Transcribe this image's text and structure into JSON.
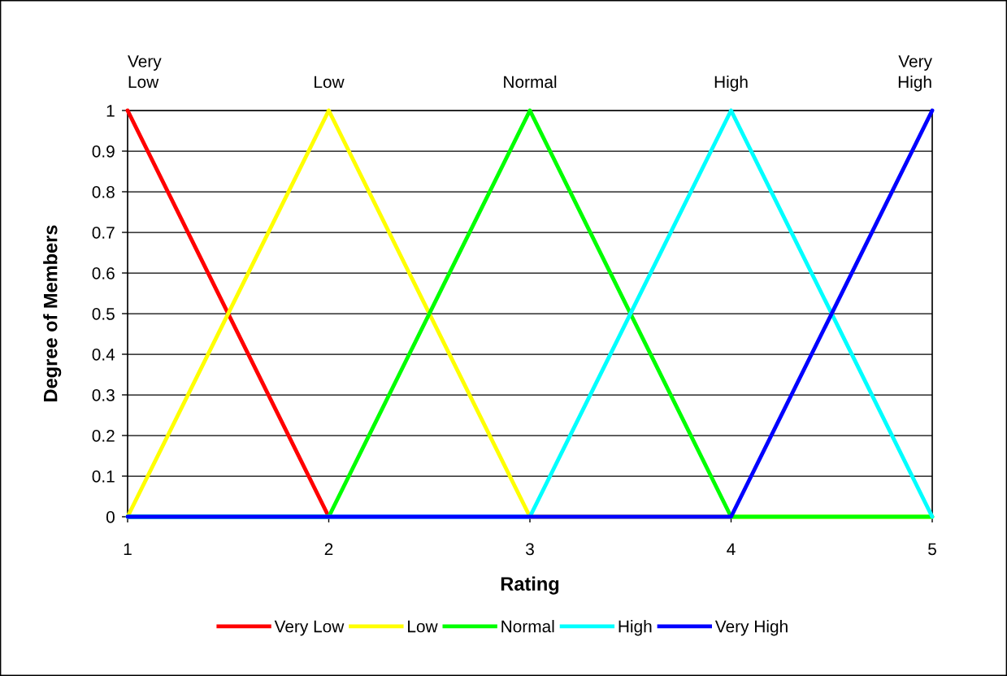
{
  "chart_data": {
    "type": "line",
    "xlabel": "Rating",
    "ylabel": "Degree of Members",
    "x": [
      1,
      2,
      3,
      4,
      5
    ],
    "series": [
      {
        "name": "Very Low",
        "color": "#ff0000",
        "values": [
          1,
          0,
          null,
          null,
          null
        ]
      },
      {
        "name": "Low",
        "color": "#ffff00",
        "values": [
          0,
          1,
          0,
          0,
          0
        ]
      },
      {
        "name": "Normal",
        "color": "#00ff00",
        "values": [
          0,
          0,
          1,
          0,
          0
        ]
      },
      {
        "name": "High",
        "color": "#00ffff",
        "values": [
          0,
          0,
          0,
          1,
          0
        ]
      },
      {
        "name": "Very High",
        "color": "#0000ff",
        "values": [
          0,
          0,
          0,
          0,
          1
        ]
      }
    ],
    "annotations": [
      {
        "text": "Very\nLow",
        "x": 1,
        "y": 1
      },
      {
        "text": "Low",
        "x": 2,
        "y": 1
      },
      {
        "text": "Normal",
        "x": 3,
        "y": 1
      },
      {
        "text": "High",
        "x": 4,
        "y": 1
      },
      {
        "text": "Very\nHigh",
        "x": 5,
        "y": 1
      }
    ],
    "xlim": [
      1,
      5
    ],
    "ylim": [
      0,
      1
    ],
    "xticks": [
      1,
      2,
      3,
      4,
      5
    ],
    "yticks": [
      0,
      0.1,
      0.2,
      0.3,
      0.4,
      0.5,
      0.6,
      0.7,
      0.8,
      0.9,
      1
    ],
    "grid": "y",
    "legend": "bottom",
    "line_style": "solid"
  }
}
